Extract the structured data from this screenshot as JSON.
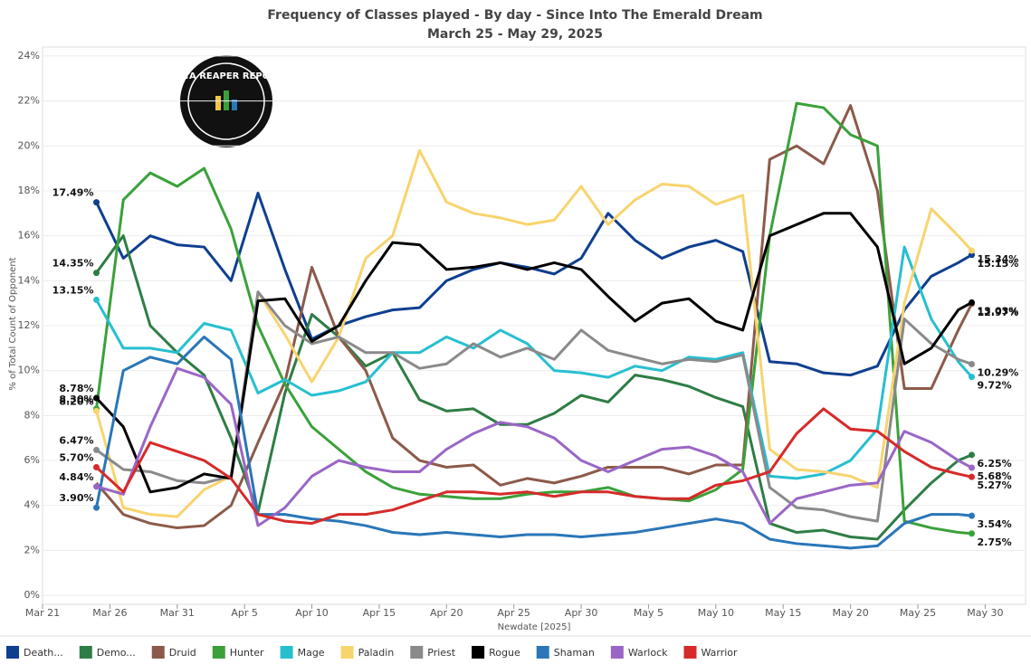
{
  "chart_data": {
    "type": "line",
    "title": "Frequency of Classes played - By day - Since Into The Emerald Dream",
    "subtitle": "March 25 - May 29, 2025",
    "y_label": "% of Total Count of Opponent",
    "x_label": "Newdate [2025]",
    "logo_text": "DATA REAPER REPORT",
    "grid": true,
    "legend": "bottom",
    "xlim": [
      "Mar 21",
      "Jun 2"
    ],
    "xticks": [
      "Mar 21",
      "Mar 26",
      "Mar 31",
      "Apr 5",
      "Apr 10",
      "Apr 15",
      "Apr 20",
      "Apr 25",
      "Apr 30",
      "May 5",
      "May 10",
      "May 15",
      "May 20",
      "May 25",
      "May 30"
    ],
    "ylim": [
      -0.4,
      24.4
    ],
    "yticks": [
      {
        "value": 0,
        "label": "0%"
      },
      {
        "value": 2,
        "label": "2%"
      },
      {
        "value": 4,
        "label": "4%"
      },
      {
        "value": 6,
        "label": "6%"
      },
      {
        "value": 8,
        "label": "8%"
      },
      {
        "value": 10,
        "label": "10%"
      },
      {
        "value": 12,
        "label": "12%"
      },
      {
        "value": 14,
        "label": "14%"
      },
      {
        "value": 16,
        "label": "16%"
      },
      {
        "value": 18,
        "label": "18%"
      },
      {
        "value": 20,
        "label": "20%"
      },
      {
        "value": 22,
        "label": "22%"
      },
      {
        "value": 24,
        "label": "24%"
      }
    ],
    "x": [
      "Mar 25",
      "Mar 27",
      "Mar 29",
      "Mar 31",
      "Apr 2",
      "Apr 4",
      "Apr 6",
      "Apr 8",
      "Apr 10",
      "Apr 12",
      "Apr 14",
      "Apr 16",
      "Apr 18",
      "Apr 20",
      "Apr 22",
      "Apr 24",
      "Apr 26",
      "Apr 28",
      "Apr 30",
      "May 2",
      "May 4",
      "May 6",
      "May 8",
      "May 10",
      "May 12",
      "May 14",
      "May 16",
      "May 18",
      "May 20",
      "May 22",
      "May 24",
      "May 26",
      "May 28",
      "May 29"
    ],
    "series": [
      {
        "name": "Death...",
        "color": "#0f3f8f",
        "values": [
          17.49,
          15.0,
          16.0,
          15.6,
          15.5,
          14.0,
          17.9,
          14.5,
          11.4,
          12.0,
          12.4,
          12.7,
          12.8,
          14.0,
          14.5,
          14.8,
          14.6,
          14.3,
          15.0,
          17.0,
          15.8,
          15.0,
          15.5,
          15.8,
          15.3,
          10.4,
          10.3,
          9.9,
          9.8,
          10.2,
          12.7,
          14.2,
          14.8,
          15.15
        ],
        "value_labels": [
          "17.49%",
          null,
          null,
          null,
          null,
          null,
          null,
          null,
          null,
          null,
          null,
          null,
          null,
          null,
          null,
          null,
          null,
          null,
          null,
          null,
          null,
          null,
          null,
          null,
          null,
          null,
          null,
          null,
          null,
          null,
          null,
          null,
          null,
          "15.15%"
        ]
      },
      {
        "name": "Demo...",
        "color": "#2e7d45",
        "values": [
          14.35,
          16.0,
          12.0,
          10.8,
          9.8,
          7.0,
          3.7,
          9.0,
          12.5,
          11.5,
          10.2,
          10.8,
          8.7,
          8.2,
          8.3,
          7.6,
          7.6,
          8.1,
          8.9,
          8.6,
          9.8,
          9.6,
          9.3,
          8.8,
          8.4,
          3.2,
          2.8,
          2.9,
          2.6,
          2.5,
          3.8,
          5.0,
          6.0,
          6.25
        ],
        "value_labels": [
          "14.35%",
          null,
          null,
          null,
          null,
          null,
          null,
          null,
          null,
          null,
          null,
          null,
          null,
          null,
          null,
          null,
          null,
          null,
          null,
          null,
          null,
          null,
          null,
          null,
          null,
          null,
          null,
          null,
          null,
          null,
          null,
          null,
          null,
          "6.25%"
        ]
      },
      {
        "name": "Druid",
        "color": "#8c5a4a",
        "values": [
          5.0,
          3.6,
          3.2,
          3.0,
          3.1,
          4.0,
          6.8,
          9.5,
          14.6,
          11.5,
          10.0,
          7.0,
          6.0,
          5.7,
          5.8,
          4.9,
          5.2,
          5.0,
          5.3,
          5.7,
          5.7,
          5.7,
          5.4,
          5.8,
          5.8,
          19.4,
          20.0,
          19.2,
          21.8,
          18.0,
          9.2,
          9.2,
          11.8,
          12.97
        ],
        "value_labels": [
          null,
          null,
          null,
          null,
          null,
          null,
          null,
          null,
          null,
          null,
          null,
          null,
          null,
          null,
          null,
          null,
          null,
          null,
          null,
          null,
          null,
          null,
          null,
          null,
          null,
          null,
          null,
          null,
          null,
          null,
          null,
          null,
          null,
          "12.97%"
        ]
      },
      {
        "name": "Hunter",
        "color": "#3aa13a",
        "values": [
          8.3,
          17.6,
          18.8,
          18.2,
          19.0,
          16.3,
          12.0,
          9.4,
          7.5,
          6.5,
          5.5,
          4.8,
          4.5,
          4.4,
          4.3,
          4.3,
          4.5,
          4.6,
          4.6,
          4.8,
          4.4,
          4.3,
          4.2,
          4.7,
          5.6,
          16.0,
          21.9,
          21.7,
          20.5,
          20.0,
          3.3,
          3.0,
          2.8,
          2.75
        ],
        "value_labels": [
          "8.30%",
          null,
          null,
          null,
          null,
          null,
          null,
          null,
          null,
          null,
          null,
          null,
          null,
          null,
          null,
          null,
          null,
          null,
          null,
          null,
          null,
          null,
          null,
          null,
          null,
          null,
          null,
          null,
          null,
          null,
          null,
          null,
          null,
          "2.75%"
        ]
      },
      {
        "name": "Mage",
        "color": "#27bfd0",
        "values": [
          13.15,
          11.0,
          11.0,
          10.8,
          12.1,
          11.8,
          9.0,
          9.6,
          8.9,
          9.1,
          9.5,
          10.8,
          10.8,
          11.5,
          11.0,
          11.8,
          11.2,
          10.0,
          9.9,
          9.7,
          10.2,
          10.0,
          10.6,
          10.5,
          10.8,
          5.3,
          5.2,
          5.4,
          6.0,
          7.4,
          15.5,
          12.3,
          10.4,
          9.72
        ],
        "value_labels": [
          "13.15%",
          null,
          null,
          null,
          null,
          null,
          null,
          null,
          null,
          null,
          null,
          null,
          null,
          null,
          null,
          null,
          null,
          null,
          null,
          null,
          null,
          null,
          null,
          null,
          null,
          null,
          null,
          null,
          null,
          null,
          null,
          null,
          null,
          "9.72%"
        ]
      },
      {
        "name": "Paladin",
        "color": "#f8d46e",
        "values": [
          8.2,
          3.9,
          3.6,
          3.5,
          4.7,
          5.3,
          13.5,
          11.6,
          9.5,
          11.5,
          15.0,
          16.0,
          19.8,
          17.5,
          17.0,
          16.8,
          16.5,
          16.7,
          18.2,
          16.5,
          17.6,
          18.3,
          18.2,
          17.4,
          17.8,
          6.5,
          5.6,
          5.5,
          5.3,
          4.8,
          13.0,
          17.2,
          16.0,
          15.34
        ],
        "value_labels": [
          "8.20%",
          null,
          null,
          null,
          null,
          null,
          null,
          null,
          null,
          null,
          null,
          null,
          null,
          null,
          null,
          null,
          null,
          null,
          null,
          null,
          null,
          null,
          null,
          null,
          null,
          null,
          null,
          null,
          null,
          null,
          null,
          null,
          null,
          "15.34%"
        ]
      },
      {
        "name": "Priest",
        "color": "#8a8a8a",
        "values": [
          6.47,
          5.6,
          5.5,
          5.1,
          5.0,
          5.3,
          13.5,
          12.0,
          11.2,
          11.5,
          10.8,
          10.8,
          10.1,
          10.3,
          11.2,
          10.6,
          11.0,
          10.5,
          11.8,
          10.9,
          10.6,
          10.3,
          10.5,
          10.4,
          10.7,
          4.8,
          3.9,
          3.8,
          3.5,
          3.3,
          12.3,
          11.2,
          10.5,
          10.29
        ],
        "value_labels": [
          "6.47%",
          null,
          null,
          null,
          null,
          null,
          null,
          null,
          null,
          null,
          null,
          null,
          null,
          null,
          null,
          null,
          null,
          null,
          null,
          null,
          null,
          null,
          null,
          null,
          null,
          null,
          null,
          null,
          null,
          null,
          null,
          null,
          null,
          "10.29%"
        ]
      },
      {
        "name": "Rogue",
        "color": "#000000",
        "values": [
          8.78,
          7.5,
          4.6,
          4.8,
          5.4,
          5.2,
          13.1,
          13.2,
          11.3,
          12.0,
          14.0,
          15.7,
          15.6,
          14.5,
          14.6,
          14.8,
          14.5,
          14.8,
          14.5,
          13.3,
          12.2,
          13.0,
          13.2,
          12.2,
          11.8,
          16.0,
          16.5,
          17.0,
          17.0,
          15.5,
          10.3,
          11.0,
          12.7,
          13.03
        ],
        "value_labels": [
          "8.78%",
          null,
          null,
          null,
          null,
          null,
          null,
          null,
          null,
          null,
          null,
          null,
          null,
          null,
          null,
          null,
          null,
          null,
          null,
          null,
          null,
          null,
          null,
          null,
          null,
          null,
          null,
          null,
          null,
          null,
          null,
          null,
          null,
          "13.03%"
        ]
      },
      {
        "name": "Shaman",
        "color": "#2a76b8",
        "values": [
          3.9,
          10.0,
          10.6,
          10.3,
          11.5,
          10.5,
          3.6,
          3.6,
          3.4,
          3.3,
          3.1,
          2.8,
          2.7,
          2.8,
          2.7,
          2.6,
          2.7,
          2.7,
          2.6,
          2.7,
          2.8,
          3.0,
          3.2,
          3.4,
          3.2,
          2.5,
          2.3,
          2.2,
          2.1,
          2.2,
          3.2,
          3.6,
          3.6,
          3.54
        ],
        "value_labels": [
          "3.90%",
          null,
          null,
          null,
          null,
          null,
          null,
          null,
          null,
          null,
          null,
          null,
          null,
          null,
          null,
          null,
          null,
          null,
          null,
          null,
          null,
          null,
          null,
          null,
          null,
          null,
          null,
          null,
          null,
          null,
          null,
          null,
          null,
          "3.54%"
        ]
      },
      {
        "name": "Warlock",
        "color": "#9a66c6",
        "values": [
          4.84,
          4.5,
          7.5,
          10.1,
          9.7,
          8.5,
          3.1,
          3.9,
          5.3,
          6.0,
          5.7,
          5.5,
          5.5,
          6.5,
          7.2,
          7.7,
          7.5,
          7.0,
          6.0,
          5.5,
          6.0,
          6.5,
          6.6,
          6.2,
          5.5,
          3.2,
          4.3,
          4.6,
          4.9,
          5.0,
          7.3,
          6.8,
          6.0,
          5.68
        ],
        "value_labels": [
          "4.84%",
          null,
          null,
          null,
          null,
          null,
          null,
          null,
          null,
          null,
          null,
          null,
          null,
          null,
          null,
          null,
          null,
          null,
          null,
          null,
          null,
          null,
          null,
          null,
          null,
          null,
          null,
          null,
          null,
          null,
          null,
          null,
          null,
          "5.68%"
        ]
      },
      {
        "name": "Warrior",
        "color": "#d62a2a",
        "values": [
          5.7,
          4.6,
          6.8,
          6.4,
          6.0,
          5.2,
          3.6,
          3.3,
          3.2,
          3.6,
          3.6,
          3.8,
          4.2,
          4.6,
          4.6,
          4.5,
          4.6,
          4.4,
          4.6,
          4.6,
          4.4,
          4.3,
          4.3,
          4.9,
          5.1,
          5.5,
          7.2,
          8.3,
          7.4,
          7.3,
          6.4,
          5.7,
          5.4,
          5.27
        ],
        "value_labels": [
          "5.70%",
          null,
          null,
          null,
          null,
          null,
          null,
          null,
          null,
          null,
          null,
          null,
          null,
          null,
          null,
          null,
          null,
          null,
          null,
          null,
          null,
          null,
          null,
          null,
          null,
          null,
          null,
          null,
          null,
          null,
          null,
          null,
          null,
          "5.27%"
        ]
      }
    ]
  }
}
